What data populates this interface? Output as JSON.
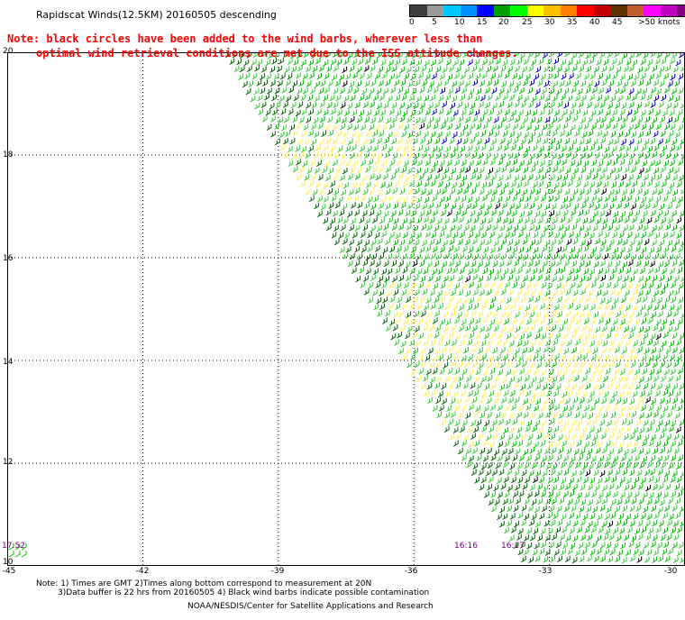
{
  "title": "Rapidscat Winds(12.5KM) 20160505 descending",
  "note_line1": "Note: black circles have been added to the wind barbs, wherever less than",
  "note_line2": "optimal wind retrieval conditions are met due to the ISS attitude changes.",
  "colorbar": {
    "labels": [
      "0",
      "5",
      "10",
      "15",
      "20",
      "25",
      "30",
      "35",
      "40",
      "45",
      ">50 knots"
    ],
    "colors": [
      "#404040",
      "#9a9a9a",
      "#00c8ff",
      "#0090ff",
      "#0000ff",
      "#00a000",
      "#00ff00",
      "#ffff00",
      "#ffc000",
      "#ff8000",
      "#ff0000",
      "#c00000",
      "#603000",
      "#c06030",
      "#ff00ff",
      "#c000c0",
      "#800080"
    ]
  },
  "map": {
    "lat_labels": [
      "20",
      "18",
      "16",
      "14",
      "12",
      "10"
    ],
    "lon_labels": [
      "-45",
      "-42",
      "-39",
      "-36",
      "-33",
      "-30"
    ],
    "lat_range": [
      10,
      20
    ],
    "lon_range": [
      -45,
      -30
    ],
    "left_time": "17:52",
    "bottom_times": [
      "16:16",
      "16:17"
    ]
  },
  "footnotes": {
    "line1": "Note: 1) Times are GMT 2)Times along bottom correspond to measurement at 20N",
    "line2": "3)Data buffer is 22 hrs from 20160505 4) Black wind barbs indicate possible contamination",
    "line3": "NOAA/NESDIS/Center for Satellite Applications and Research"
  },
  "barb_colors": {
    "dark_green": "#006400",
    "green": "#00c000",
    "light_green": "#33cc33",
    "yellow": "#ffee55",
    "blue": "#0000cc",
    "black": "#000000"
  }
}
